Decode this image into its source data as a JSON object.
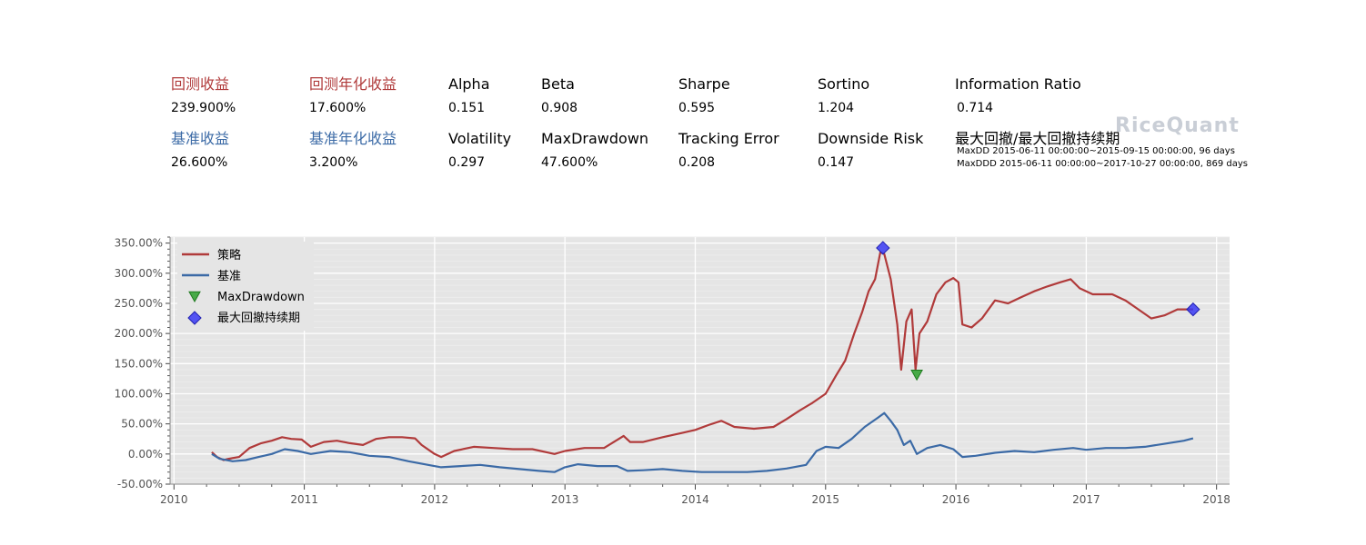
{
  "summary": {
    "return_label": "回测收益",
    "return_value": "239.900%",
    "annual_return_label": "回测年化收益",
    "annual_return_value": "17.600%",
    "alpha_label": "Alpha",
    "alpha_value": "0.151",
    "beta_label": "Beta",
    "beta_value": "0.908",
    "sharpe_label": "Sharpe",
    "sharpe_value": "0.595",
    "sortino_label": "Sortino",
    "sortino_value": "1.204",
    "info_ratio_label": "Information Ratio",
    "info_ratio_value": "0.714",
    "benchmark_return_label": "基准收益",
    "benchmark_return_value": "26.600%",
    "benchmark_annual_label": "基准年化收益",
    "benchmark_annual_value": "3.200%",
    "volatility_label": "Volatility",
    "volatility_value": "0.297",
    "maxdrawdown_label": "MaxDrawdown",
    "maxdrawdown_value": "47.600%",
    "tracking_error_label": "Tracking Error",
    "tracking_error_value": "0.208",
    "downside_risk_label": "Downside Risk",
    "downside_risk_value": "0.147",
    "maxdd_title": "最大回撤/最大回撤持续期",
    "maxdd_line": "MaxDD  2015-06-11 00:00:00~2015-09-15 00:00:00, 96 days",
    "maxddd_line": "MaxDDD 2015-06-11 00:00:00~2017-10-27 00:00:00, 869 days"
  },
  "watermark": "RiceQuant",
  "colors": {
    "strategy": "#b03a3a",
    "benchmark": "#3b6aa6",
    "maxdd_marker": "#2ca02c",
    "maxddd_marker": "#3a3af5",
    "plot_bg": "#e5e5e5"
  },
  "chart_data": {
    "type": "line",
    "xlim": [
      2009.97,
      2018.1
    ],
    "ylim": [
      -50,
      360
    ],
    "x_ticks": [
      2010,
      2011,
      2012,
      2013,
      2014,
      2015,
      2016,
      2017,
      2018
    ],
    "y_ticks": [
      -50,
      0,
      50,
      100,
      150,
      200,
      250,
      300,
      350
    ],
    "grid": true,
    "legend_position": "top-left",
    "series": [
      {
        "name": "策略",
        "points": [
          [
            2010.29,
            3
          ],
          [
            2010.33,
            -5
          ],
          [
            2010.38,
            -10
          ],
          [
            2010.42,
            -8
          ],
          [
            2010.5,
            -5
          ],
          [
            2010.58,
            10
          ],
          [
            2010.67,
            18
          ],
          [
            2010.75,
            22
          ],
          [
            2010.83,
            28
          ],
          [
            2010.9,
            25
          ],
          [
            2010.98,
            24
          ],
          [
            2011.05,
            12
          ],
          [
            2011.15,
            20
          ],
          [
            2011.25,
            22
          ],
          [
            2011.35,
            18
          ],
          [
            2011.45,
            15
          ],
          [
            2011.55,
            25
          ],
          [
            2011.65,
            28
          ],
          [
            2011.75,
            28
          ],
          [
            2011.85,
            26
          ],
          [
            2011.9,
            15
          ],
          [
            2012.0,
            0
          ],
          [
            2012.05,
            -5
          ],
          [
            2012.15,
            5
          ],
          [
            2012.3,
            12
          ],
          [
            2012.45,
            10
          ],
          [
            2012.6,
            8
          ],
          [
            2012.75,
            8
          ],
          [
            2012.92,
            0
          ],
          [
            2013.0,
            5
          ],
          [
            2013.15,
            10
          ],
          [
            2013.3,
            10
          ],
          [
            2013.45,
            30
          ],
          [
            2013.5,
            20
          ],
          [
            2013.6,
            20
          ],
          [
            2013.75,
            28
          ],
          [
            2013.9,
            35
          ],
          [
            2014.0,
            40
          ],
          [
            2014.1,
            48
          ],
          [
            2014.2,
            55
          ],
          [
            2014.3,
            45
          ],
          [
            2014.45,
            42
          ],
          [
            2014.6,
            45
          ],
          [
            2014.7,
            58
          ],
          [
            2014.8,
            72
          ],
          [
            2014.9,
            85
          ],
          [
            2015.0,
            100
          ],
          [
            2015.08,
            130
          ],
          [
            2015.15,
            155
          ],
          [
            2015.22,
            200
          ],
          [
            2015.28,
            235
          ],
          [
            2015.33,
            270
          ],
          [
            2015.38,
            290
          ],
          [
            2015.42,
            335
          ],
          [
            2015.45,
            332
          ],
          [
            2015.5,
            290
          ],
          [
            2015.55,
            215
          ],
          [
            2015.58,
            140
          ],
          [
            2015.62,
            220
          ],
          [
            2015.66,
            240
          ],
          [
            2015.69,
            140
          ],
          [
            2015.72,
            200
          ],
          [
            2015.78,
            220
          ],
          [
            2015.85,
            265
          ],
          [
            2015.92,
            285
          ],
          [
            2015.98,
            292
          ],
          [
            2016.02,
            285
          ],
          [
            2016.05,
            215
          ],
          [
            2016.12,
            210
          ],
          [
            2016.2,
            225
          ],
          [
            2016.3,
            255
          ],
          [
            2016.4,
            250
          ],
          [
            2016.5,
            260
          ],
          [
            2016.6,
            270
          ],
          [
            2016.7,
            278
          ],
          [
            2016.8,
            285
          ],
          [
            2016.88,
            290
          ],
          [
            2016.95,
            275
          ],
          [
            2017.05,
            265
          ],
          [
            2017.2,
            265
          ],
          [
            2017.3,
            255
          ],
          [
            2017.4,
            240
          ],
          [
            2017.5,
            225
          ],
          [
            2017.6,
            230
          ],
          [
            2017.7,
            240
          ],
          [
            2017.78,
            240
          ],
          [
            2017.82,
            240
          ]
        ]
      },
      {
        "name": "基准",
        "points": [
          [
            2010.29,
            0
          ],
          [
            2010.35,
            -8
          ],
          [
            2010.45,
            -12
          ],
          [
            2010.55,
            -10
          ],
          [
            2010.65,
            -5
          ],
          [
            2010.75,
            0
          ],
          [
            2010.85,
            8
          ],
          [
            2010.95,
            5
          ],
          [
            2011.05,
            0
          ],
          [
            2011.2,
            5
          ],
          [
            2011.35,
            3
          ],
          [
            2011.5,
            -3
          ],
          [
            2011.65,
            -5
          ],
          [
            2011.8,
            -12
          ],
          [
            2011.95,
            -18
          ],
          [
            2012.05,
            -22
          ],
          [
            2012.2,
            -20
          ],
          [
            2012.35,
            -18
          ],
          [
            2012.5,
            -22
          ],
          [
            2012.65,
            -25
          ],
          [
            2012.8,
            -28
          ],
          [
            2012.92,
            -30
          ],
          [
            2013.0,
            -22
          ],
          [
            2013.1,
            -17
          ],
          [
            2013.25,
            -20
          ],
          [
            2013.4,
            -20
          ],
          [
            2013.48,
            -28
          ],
          [
            2013.6,
            -27
          ],
          [
            2013.75,
            -25
          ],
          [
            2013.9,
            -28
          ],
          [
            2014.05,
            -30
          ],
          [
            2014.2,
            -30
          ],
          [
            2014.4,
            -30
          ],
          [
            2014.55,
            -28
          ],
          [
            2014.7,
            -24
          ],
          [
            2014.85,
            -18
          ],
          [
            2014.93,
            5
          ],
          [
            2015.0,
            12
          ],
          [
            2015.1,
            10
          ],
          [
            2015.2,
            25
          ],
          [
            2015.3,
            45
          ],
          [
            2015.4,
            60
          ],
          [
            2015.45,
            68
          ],
          [
            2015.5,
            55
          ],
          [
            2015.55,
            40
          ],
          [
            2015.6,
            15
          ],
          [
            2015.65,
            22
          ],
          [
            2015.7,
            0
          ],
          [
            2015.78,
            10
          ],
          [
            2015.88,
            15
          ],
          [
            2015.98,
            8
          ],
          [
            2016.05,
            -5
          ],
          [
            2016.15,
            -3
          ],
          [
            2016.3,
            2
          ],
          [
            2016.45,
            5
          ],
          [
            2016.6,
            3
          ],
          [
            2016.75,
            7
          ],
          [
            2016.9,
            10
          ],
          [
            2017.0,
            7
          ],
          [
            2017.15,
            10
          ],
          [
            2017.3,
            10
          ],
          [
            2017.45,
            12
          ],
          [
            2017.6,
            17
          ],
          [
            2017.75,
            22
          ],
          [
            2017.82,
            26
          ]
        ]
      }
    ],
    "markers": [
      {
        "name": "MaxDrawdown",
        "shape": "triangle-down",
        "points": [
          [
            2015.7,
            132
          ]
        ]
      },
      {
        "name": "最大回撤持续期",
        "shape": "diamond",
        "points": [
          [
            2015.44,
            342
          ],
          [
            2017.82,
            240
          ]
        ]
      }
    ],
    "x_tick_labels": [
      "2010",
      "2011",
      "2012",
      "2013",
      "2014",
      "2015",
      "2016",
      "2017",
      "2018"
    ],
    "y_tick_labels": [
      "-50.00%",
      "0.00%",
      "50.00%",
      "100.00%",
      "150.00%",
      "200.00%",
      "250.00%",
      "300.00%",
      "350.00%"
    ]
  }
}
